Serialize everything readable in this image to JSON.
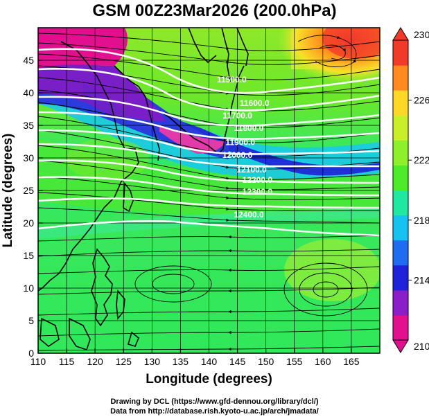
{
  "title": "GSM 00Z23Mar2026 (200.0hPa)",
  "xlabel": "Longitude (degrees)",
  "ylabel": "Latitude  (degrees)",
  "credits": [
    "Drawing by DCL (https://www.gfd-dennou.org/library/dcl/)",
    "Data from http://database.rish.kyoto-u.ac.jp/arch/jmadata/"
  ],
  "chart_data": {
    "type": "contour-map",
    "variable": "temperature (shaded) with geopotential height contours and streamlines",
    "xlim": [
      110,
      170
    ],
    "ylim": [
      0,
      50
    ],
    "x_ticks": [
      110,
      115,
      120,
      125,
      130,
      135,
      140,
      145,
      150,
      155,
      160,
      165
    ],
    "y_ticks": [
      0,
      5,
      10,
      15,
      20,
      25,
      30,
      35,
      40,
      45
    ],
    "colorbar": {
      "range": [
        210,
        230
      ],
      "ticks": [
        210,
        214,
        218,
        222,
        226,
        230
      ],
      "colors": [
        "#e0108f",
        "#8a1ec8",
        "#1f22d8",
        "#1f6cf0",
        "#16c2f0",
        "#20e8a0",
        "#4fea2a",
        "#8df02a",
        "#c8ef2a",
        "#ffd726",
        "#ff8a1f",
        "#f23a2a"
      ]
    },
    "height_contours": [
      {
        "label": "11500.0",
        "anchor": [
          144,
          42
        ]
      },
      {
        "label": "11600.0",
        "anchor": [
          148,
          38.4
        ]
      },
      {
        "label": "11700.0",
        "anchor": [
          145,
          36.5
        ]
      },
      {
        "label": "11800.0",
        "anchor": [
          147,
          34.6
        ]
      },
      {
        "label": "11900.0",
        "anchor": [
          145.5,
          32.4
        ]
      },
      {
        "label": "12000.0",
        "anchor": [
          145,
          30.4
        ]
      },
      {
        "label": "12100.0",
        "anchor": [
          147.5,
          28.2
        ]
      },
      {
        "label": "12200.0",
        "anchor": [
          148.5,
          26.6
        ]
      },
      {
        "label": "12300.0",
        "anchor": [
          148.5,
          24.8
        ]
      },
      {
        "label": "12400.0",
        "anchor": [
          147,
          21.3
        ]
      }
    ],
    "notes": [
      "anticyclonic circulation centered near 160E, 10N",
      "jet core around 30-38N"
    ]
  }
}
